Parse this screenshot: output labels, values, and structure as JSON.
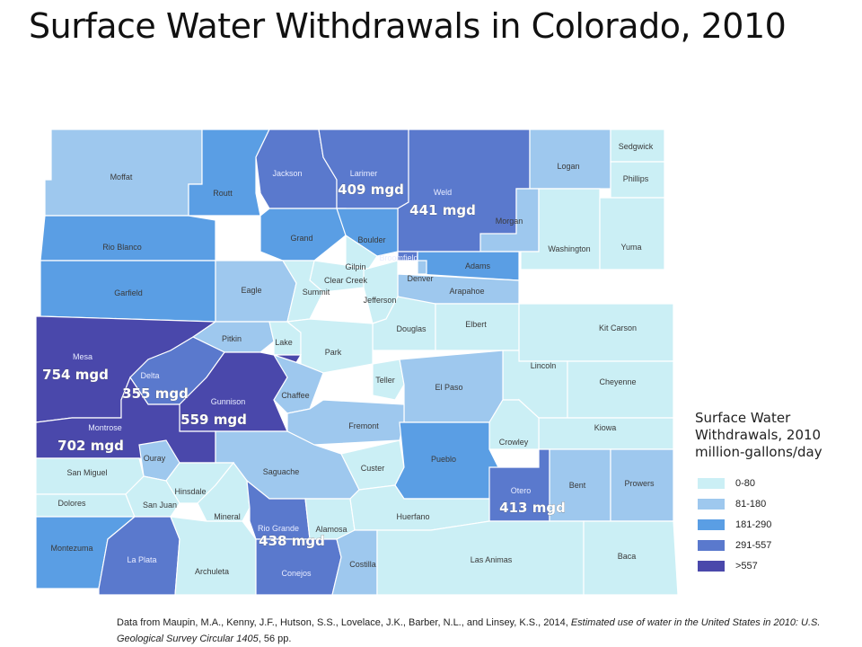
{
  "title": "Surface Water Withdrawals in Colorado, 2010",
  "legend": {
    "title_lines": [
      "Surface Water",
      "Withdrawals, 2010",
      "million-gallons/day"
    ],
    "classes": [
      {
        "label": "0-80",
        "color": "#cbeff5"
      },
      {
        "label": "81-180",
        "color": "#9ec8ee"
      },
      {
        "label": "181-290",
        "color": "#5a9ee4"
      },
      {
        "label": "291-557",
        "color": "#5a79cd"
      },
      {
        "label": ">557",
        "color": "#4a48ab"
      }
    ]
  },
  "counties": [
    {
      "name": "Moffat",
      "class": 1
    },
    {
      "name": "Routt",
      "class": 2
    },
    {
      "name": "Jackson",
      "class": 3
    },
    {
      "name": "Larimer",
      "class": 3
    },
    {
      "name": "Weld",
      "class": 3
    },
    {
      "name": "Logan",
      "class": 1
    },
    {
      "name": "Sedgwick",
      "class": 0
    },
    {
      "name": "Phillips",
      "class": 0
    },
    {
      "name": "Morgan",
      "class": 1
    },
    {
      "name": "Washington",
      "class": 0
    },
    {
      "name": "Yuma",
      "class": 0
    },
    {
      "name": "Rio Blanco",
      "class": 2
    },
    {
      "name": "Grand",
      "class": 2
    },
    {
      "name": "Boulder",
      "class": 2
    },
    {
      "name": "Broomfield",
      "class": 3
    },
    {
      "name": "Adams",
      "class": 2
    },
    {
      "name": "Gilpin",
      "class": 0
    },
    {
      "name": "Clear Creek",
      "class": 0
    },
    {
      "name": "Denver",
      "class": 1
    },
    {
      "name": "Arapahoe",
      "class": 1
    },
    {
      "name": "Garfield",
      "class": 2
    },
    {
      "name": "Eagle",
      "class": 1
    },
    {
      "name": "Summit",
      "class": 0
    },
    {
      "name": "Jefferson",
      "class": 0
    },
    {
      "name": "Douglas",
      "class": 0
    },
    {
      "name": "Elbert",
      "class": 0
    },
    {
      "name": "Kit Carson",
      "class": 0
    },
    {
      "name": "Mesa",
      "class": 4
    },
    {
      "name": "Pitkin",
      "class": 1
    },
    {
      "name": "Lake",
      "class": 0
    },
    {
      "name": "Park",
      "class": 0
    },
    {
      "name": "Teller",
      "class": 0
    },
    {
      "name": "Lincoln",
      "class": 0
    },
    {
      "name": "Cheyenne",
      "class": 0
    },
    {
      "name": "Delta",
      "class": 3
    },
    {
      "name": "Gunnison",
      "class": 4
    },
    {
      "name": "Chaffee",
      "class": 1
    },
    {
      "name": "El Paso",
      "class": 1
    },
    {
      "name": "Kiowa",
      "class": 0
    },
    {
      "name": "Montrose",
      "class": 4
    },
    {
      "name": "Fremont",
      "class": 1
    },
    {
      "name": "Crowley",
      "class": 0
    },
    {
      "name": "Ouray",
      "class": 1
    },
    {
      "name": "Saguache",
      "class": 1
    },
    {
      "name": "Custer",
      "class": 0
    },
    {
      "name": "Pueblo",
      "class": 2
    },
    {
      "name": "Otero",
      "class": 3
    },
    {
      "name": "Bent",
      "class": 1
    },
    {
      "name": "Prowers",
      "class": 1
    },
    {
      "name": "San Miguel",
      "class": 0
    },
    {
      "name": "Dolores",
      "class": 0
    },
    {
      "name": "Hinsdale",
      "class": 0
    },
    {
      "name": "San Juan",
      "class": 0
    },
    {
      "name": "Mineral",
      "class": 0
    },
    {
      "name": "Rio Grande",
      "class": 3
    },
    {
      "name": "Alamosa",
      "class": 0
    },
    {
      "name": "Huerfano",
      "class": 0
    },
    {
      "name": "Montezuma",
      "class": 2
    },
    {
      "name": "La Plata",
      "class": 3
    },
    {
      "name": "Archuleta",
      "class": 0
    },
    {
      "name": "Conejos",
      "class": 3
    },
    {
      "name": "Costilla",
      "class": 1
    },
    {
      "name": "Las Animas",
      "class": 0
    },
    {
      "name": "Baca",
      "class": 0
    }
  ],
  "callouts": {
    "Larimer": "409 mgd",
    "Weld": "441 mgd",
    "Mesa": "754 mgd",
    "Delta": "355 mgd",
    "Gunnison": "559 mgd",
    "Montrose": "702 mgd",
    "Otero": "413 mgd",
    "Rio Grande": "438 mgd"
  },
  "citation": {
    "text_plain": "Data from Maupin, M.A., Kenny, J.F., Hutson, S.S., Lovelace, J.K., Barber, N.L., and Linsey, K.S., 2014, ",
    "text_italic": "Estimated use of water in the United States in 2010: U.S. Geological Survey Circular 1405",
    "text_end": ", 56 pp."
  }
}
